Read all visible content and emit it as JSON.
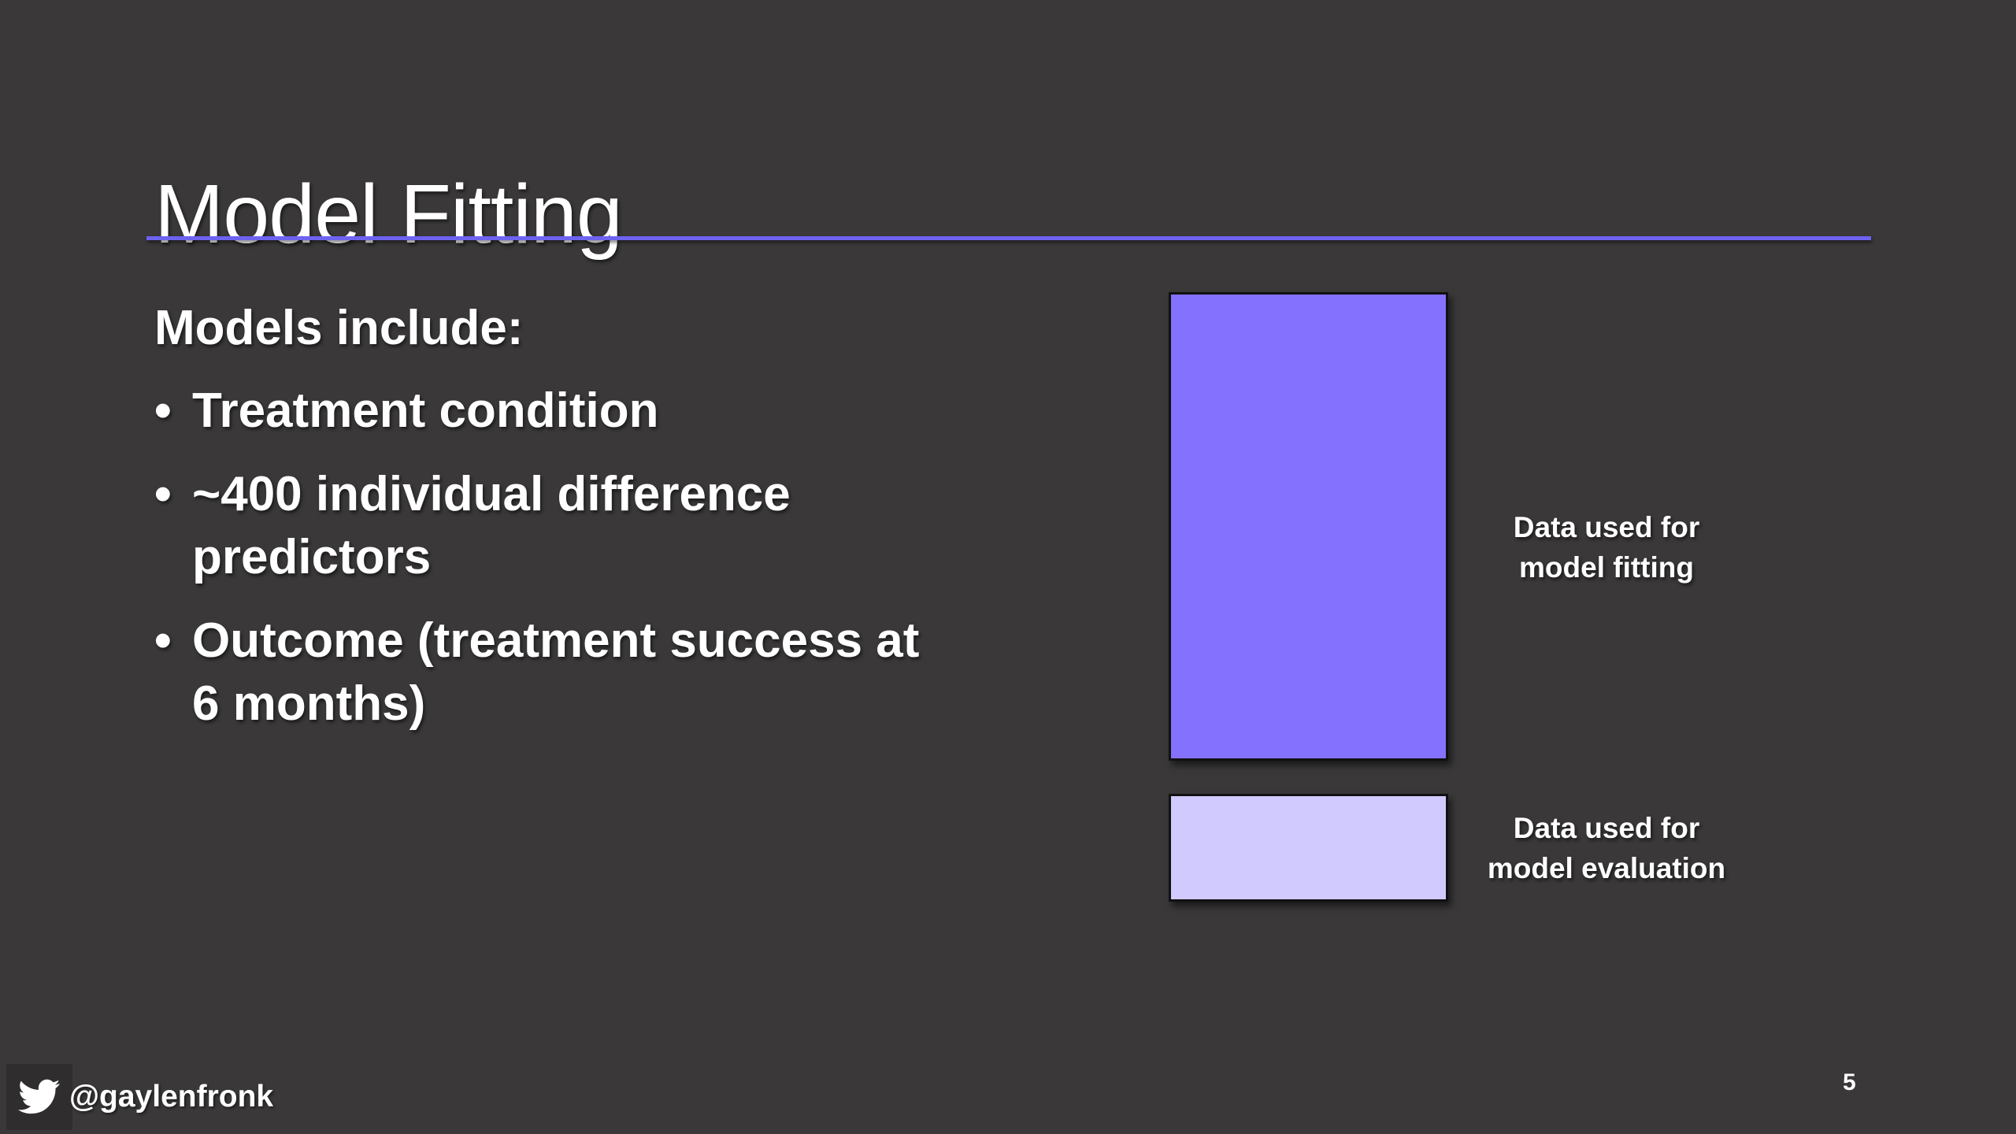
{
  "slide": {
    "title": "Model Fitting",
    "accent_color": "#6e63f0",
    "background_color": "#3a3839",
    "page_number": "5"
  },
  "content": {
    "heading": "Models include:",
    "bullets": [
      {
        "marker": "•",
        "lines": [
          "Treatment condition"
        ]
      },
      {
        "marker": "•",
        "lines": [
          "~400 individual difference",
          "predictors"
        ]
      },
      {
        "marker": "•",
        "lines": [
          "Outcome (treatment success at",
          "6 months)"
        ]
      }
    ]
  },
  "data_split": {
    "fitting": {
      "label_lines": [
        "Data used for",
        "model fitting"
      ],
      "color": "#8471fe"
    },
    "evaluation": {
      "label_lines": [
        "Data used for",
        "model evaluation"
      ],
      "color": "#d0cafe"
    }
  },
  "footer": {
    "icon": "twitter-bird-icon",
    "handle": "@gaylenfronk"
  }
}
